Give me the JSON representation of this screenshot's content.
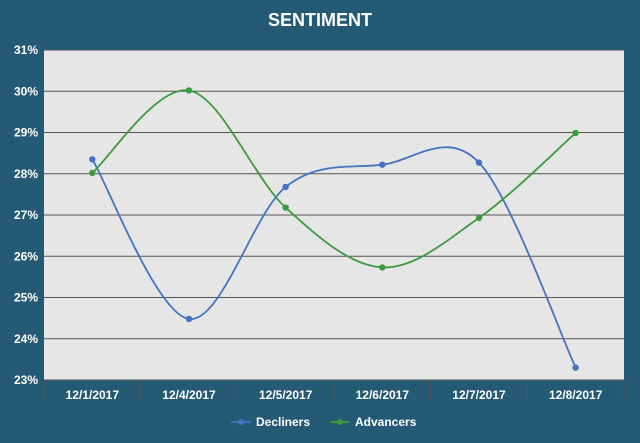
{
  "chart_data": {
    "type": "line",
    "title": "SENTIMENT",
    "categories": [
      "12/1/2017",
      "12/4/2017",
      "12/5/2017",
      "12/6/2017",
      "12/7/2017",
      "12/8/2017"
    ],
    "y_ticks": [
      "23%",
      "24%",
      "25%",
      "26%",
      "27%",
      "28%",
      "29%",
      "30%",
      "31%"
    ],
    "ylim": [
      23,
      31
    ],
    "y_unit": "%",
    "grid": "horizontal",
    "legend_position": "bottom",
    "smooth": true,
    "series": [
      {
        "name": "Decliners",
        "color": "#4472c4",
        "values": [
          28.35,
          24.48,
          27.68,
          28.22,
          28.27,
          23.3
        ]
      },
      {
        "name": "Advancers",
        "color": "#3e9a3e",
        "values": [
          28.02,
          30.02,
          27.18,
          25.73,
          26.93,
          28.99
        ]
      }
    ],
    "colors": {
      "background": "#245a73",
      "plot_area": "#e6e6e6",
      "grid": "#555555"
    }
  }
}
